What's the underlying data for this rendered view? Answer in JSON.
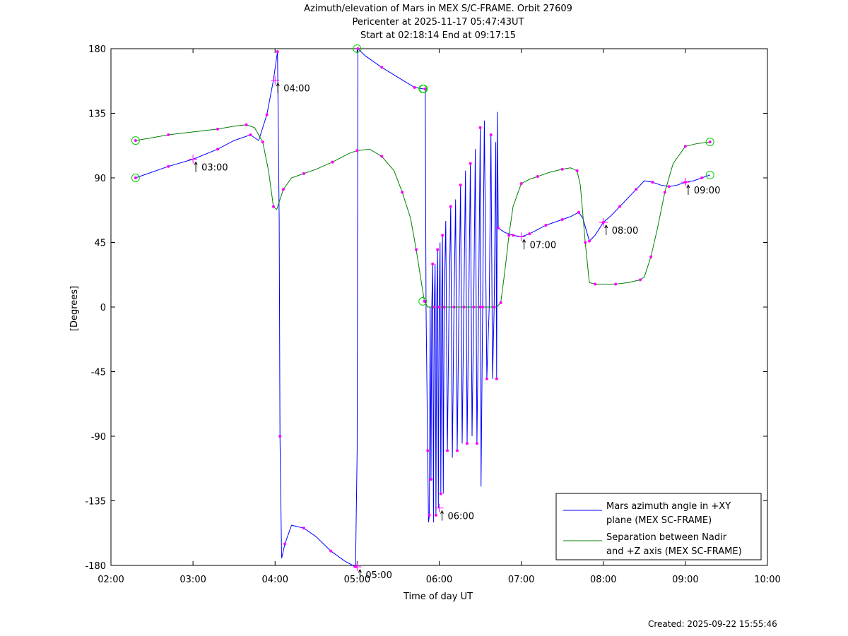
{
  "title": {
    "line1": "Azimuth/elevation of Mars in MEX S/C-FRAME.  Orbit 27609",
    "line2": "Pericenter at 2025-11-17 05:47:43UT",
    "line3": "Start at 02:18:14 End at 09:17:15"
  },
  "footer": "Created: 2025-09-22 15:55:46",
  "chart_data": {
    "type": "line",
    "xlabel": "Time of day UT",
    "ylabel": "[Degrees]",
    "xlim": [
      2,
      10
    ],
    "ylim": [
      -180,
      180
    ],
    "x_ticks": [
      {
        "v": 2,
        "label": "02:00"
      },
      {
        "v": 3,
        "label": "03:00"
      },
      {
        "v": 4,
        "label": "04:00"
      },
      {
        "v": 5,
        "label": "05:00"
      },
      {
        "v": 6,
        "label": "06:00"
      },
      {
        "v": 7,
        "label": "07:00"
      },
      {
        "v": 8,
        "label": "08:00"
      },
      {
        "v": 9,
        "label": "09:00"
      },
      {
        "v": 10,
        "label": "10:00"
      }
    ],
    "y_ticks": [
      {
        "v": 180,
        "label": "180"
      },
      {
        "v": 135,
        "label": "135"
      },
      {
        "v": 90,
        "label": "90"
      },
      {
        "v": 45,
        "label": "45"
      },
      {
        "v": 0,
        "label": "0"
      },
      {
        "v": -45,
        "label": "-45"
      },
      {
        "v": -90,
        "label": "-90"
      },
      {
        "v": -135,
        "label": "-135"
      },
      {
        "v": -180,
        "label": "-180"
      }
    ],
    "legend_position": "bottom-right",
    "series": [
      {
        "name": "Mars azimuth angle in +XY plane (MEX SC-FRAME)",
        "legend_lines": [
          "Mars azimuth angle in +XY",
          "plane (MEX SC-FRAME)"
        ],
        "color": "#0000ff",
        "points": [
          [
            2.3,
            90
          ],
          [
            2.5,
            94
          ],
          [
            2.7,
            98
          ],
          [
            3.0,
            103
          ],
          [
            3.3,
            110
          ],
          [
            3.5,
            116
          ],
          [
            3.7,
            120
          ],
          [
            3.8,
            116
          ],
          [
            3.9,
            134
          ],
          [
            3.98,
            158
          ],
          [
            4.03,
            178
          ],
          [
            4.05,
            60
          ],
          [
            4.06,
            -90
          ],
          [
            4.08,
            -175
          ],
          [
            4.12,
            -165
          ],
          [
            4.2,
            -152
          ],
          [
            4.35,
            -154
          ],
          [
            4.5,
            -160
          ],
          [
            4.68,
            -170
          ],
          [
            4.85,
            -177
          ],
          [
            4.98,
            -181
          ],
          [
            5.0,
            -100
          ],
          [
            5.01,
            180
          ],
          [
            5.1,
            175
          ],
          [
            5.3,
            167
          ],
          [
            5.5,
            160
          ],
          [
            5.7,
            153
          ],
          [
            5.8,
            152
          ],
          [
            5.83,
            152
          ],
          [
            5.84,
            0
          ],
          [
            5.86,
            -100
          ],
          [
            5.87,
            -150
          ],
          [
            5.88,
            -145
          ],
          [
            5.89,
            0
          ],
          [
            5.9,
            -120
          ],
          [
            5.91,
            0
          ],
          [
            5.92,
            30
          ],
          [
            5.93,
            -150
          ],
          [
            5.94,
            0
          ],
          [
            5.95,
            30
          ],
          [
            5.96,
            -145
          ],
          [
            5.97,
            0
          ],
          [
            5.98,
            40
          ],
          [
            5.99,
            -140
          ],
          [
            6.0,
            0
          ],
          [
            6.01,
            45
          ],
          [
            6.02,
            -130
          ],
          [
            6.03,
            0
          ],
          [
            6.04,
            50
          ],
          [
            6.05,
            -130
          ],
          [
            6.06,
            0
          ],
          [
            6.08,
            60
          ],
          [
            6.1,
            -100
          ],
          [
            6.12,
            0
          ],
          [
            6.14,
            70
          ],
          [
            6.16,
            -105
          ],
          [
            6.18,
            0
          ],
          [
            6.2,
            75
          ],
          [
            6.22,
            -100
          ],
          [
            6.24,
            0
          ],
          [
            6.26,
            85
          ],
          [
            6.28,
            -95
          ],
          [
            6.3,
            0
          ],
          [
            6.32,
            95
          ],
          [
            6.34,
            -95
          ],
          [
            6.36,
            0
          ],
          [
            6.38,
            100
          ],
          [
            6.4,
            -90
          ],
          [
            6.42,
            0
          ],
          [
            6.44,
            110
          ],
          [
            6.46,
            -95
          ],
          [
            6.48,
            0
          ],
          [
            6.5,
            125
          ],
          [
            6.51,
            -125
          ],
          [
            6.53,
            0
          ],
          [
            6.55,
            130
          ],
          [
            6.58,
            -50
          ],
          [
            6.61,
            0
          ],
          [
            6.63,
            120
          ],
          [
            6.65,
            -50
          ],
          [
            6.67,
            0
          ],
          [
            6.69,
            115
          ],
          [
            6.7,
            -50
          ],
          [
            6.71,
            136
          ],
          [
            6.72,
            55
          ],
          [
            6.8,
            52
          ],
          [
            6.9,
            50
          ],
          [
            7.0,
            49
          ],
          [
            7.1,
            51
          ],
          [
            7.2,
            54
          ],
          [
            7.3,
            57
          ],
          [
            7.4,
            59
          ],
          [
            7.5,
            61
          ],
          [
            7.6,
            63
          ],
          [
            7.7,
            66
          ],
          [
            7.75,
            62
          ],
          [
            7.83,
            46
          ],
          [
            7.9,
            50
          ],
          [
            8.0,
            59
          ],
          [
            8.1,
            64
          ],
          [
            8.2,
            70
          ],
          [
            8.3,
            76
          ],
          [
            8.4,
            82
          ],
          [
            8.5,
            88
          ],
          [
            8.6,
            87
          ],
          [
            8.7,
            85
          ],
          [
            8.8,
            84
          ],
          [
            8.9,
            85
          ],
          [
            9.0,
            87
          ],
          [
            9.1,
            88
          ],
          [
            9.2,
            90
          ],
          [
            9.3,
            92
          ]
        ]
      },
      {
        "name": "Separation between Nadir and +Z axis (MEX SC-FRAME)",
        "legend_lines": [
          "Separation between Nadir",
          "and +Z axis (MEX SC-FRAME)"
        ],
        "color": "#008000",
        "points": [
          [
            2.3,
            116
          ],
          [
            2.5,
            118
          ],
          [
            2.7,
            120
          ],
          [
            3.0,
            122
          ],
          [
            3.3,
            124
          ],
          [
            3.5,
            126
          ],
          [
            3.65,
            127
          ],
          [
            3.75,
            125
          ],
          [
            3.85,
            115
          ],
          [
            3.92,
            95
          ],
          [
            3.98,
            70
          ],
          [
            4.02,
            68
          ],
          [
            4.1,
            82
          ],
          [
            4.2,
            90
          ],
          [
            4.35,
            93
          ],
          [
            4.5,
            96
          ],
          [
            4.7,
            101
          ],
          [
            4.9,
            107
          ],
          [
            5.0,
            109
          ],
          [
            5.15,
            110
          ],
          [
            5.3,
            105
          ],
          [
            5.45,
            95
          ],
          [
            5.55,
            80
          ],
          [
            5.65,
            62
          ],
          [
            5.72,
            40
          ],
          [
            5.78,
            18
          ],
          [
            5.82,
            4
          ],
          [
            5.86,
            0
          ],
          [
            6.0,
            0
          ],
          [
            6.2,
            0
          ],
          [
            6.5,
            0
          ],
          [
            6.7,
            0
          ],
          [
            6.75,
            3
          ],
          [
            6.8,
            25
          ],
          [
            6.85,
            50
          ],
          [
            6.9,
            70
          ],
          [
            7.0,
            86
          ],
          [
            7.1,
            89
          ],
          [
            7.2,
            91
          ],
          [
            7.35,
            94
          ],
          [
            7.5,
            96
          ],
          [
            7.6,
            97
          ],
          [
            7.68,
            95
          ],
          [
            7.72,
            85
          ],
          [
            7.78,
            45
          ],
          [
            7.83,
            17
          ],
          [
            7.9,
            16
          ],
          [
            8.0,
            16
          ],
          [
            8.15,
            16
          ],
          [
            8.3,
            17
          ],
          [
            8.45,
            19
          ],
          [
            8.5,
            21
          ],
          [
            8.58,
            35
          ],
          [
            8.66,
            55
          ],
          [
            8.75,
            80
          ],
          [
            8.85,
            100
          ],
          [
            9.0,
            112
          ],
          [
            9.15,
            114
          ],
          [
            9.3,
            115
          ]
        ]
      }
    ],
    "markers": [
      [
        2.3,
        90
      ],
      [
        2.3,
        116
      ],
      [
        5.0,
        180
      ],
      [
        5.8,
        152
      ],
      [
        5.8,
        4
      ],
      [
        5.81,
        152
      ],
      [
        9.3,
        92
      ],
      [
        9.3,
        115
      ]
    ],
    "annotations": [
      {
        "x": 3.0,
        "y": 103,
        "label": "03:00"
      },
      {
        "x": 4.0,
        "y": 158,
        "label": "04:00"
      },
      {
        "x": 5.0,
        "y": -181,
        "label": "05:00"
      },
      {
        "x": 6.0,
        "y": -140,
        "label": "06:00"
      },
      {
        "x": 7.0,
        "y": 49,
        "label": "07:00"
      },
      {
        "x": 8.0,
        "y": 59,
        "label": "08:00"
      },
      {
        "x": 9.0,
        "y": 87,
        "label": "09:00"
      }
    ]
  }
}
